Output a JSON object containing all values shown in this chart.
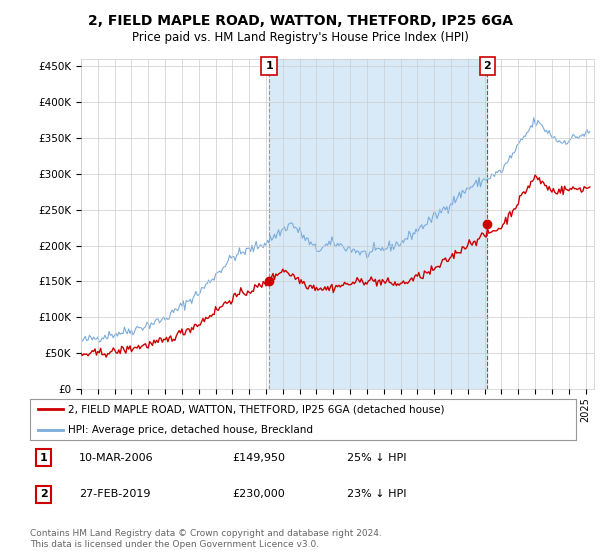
{
  "title": "2, FIELD MAPLE ROAD, WATTON, THETFORD, IP25 6GA",
  "subtitle": "Price paid vs. HM Land Registry's House Price Index (HPI)",
  "ylabel_ticks": [
    "£0",
    "£50K",
    "£100K",
    "£150K",
    "£200K",
    "£250K",
    "£300K",
    "£350K",
    "£400K",
    "£450K"
  ],
  "ytick_values": [
    0,
    50000,
    100000,
    150000,
    200000,
    250000,
    300000,
    350000,
    400000,
    450000
  ],
  "ylim": [
    0,
    460000
  ],
  "xlim_start": 1995.0,
  "xlim_end": 2025.5,
  "transaction1": {
    "date_num": 2006.19,
    "price": 149950,
    "label": "1",
    "text": "10-MAR-2006",
    "price_text": "£149,950",
    "pct_text": "25% ↓ HPI"
  },
  "transaction2": {
    "date_num": 2019.16,
    "price": 230000,
    "label": "2",
    "text": "27-FEB-2019",
    "price_text": "£230,000",
    "pct_text": "23% ↓ HPI"
  },
  "legend_line1": "2, FIELD MAPLE ROAD, WATTON, THETFORD, IP25 6GA (detached house)",
  "legend_line2": "HPI: Average price, detached house, Breckland",
  "footer": "Contains HM Land Registry data © Crown copyright and database right 2024.\nThis data is licensed under the Open Government Licence v3.0.",
  "property_color": "#cc0000",
  "hpi_color": "#7aabdb",
  "hpi_fill_color": "#ddeef8",
  "background_color": "#ffffff",
  "grid_color": "#cccccc",
  "shade_color": "#d8eaf7",
  "title_fontsize": 10,
  "subtitle_fontsize": 8.5,
  "tick_fontsize": 7.5
}
